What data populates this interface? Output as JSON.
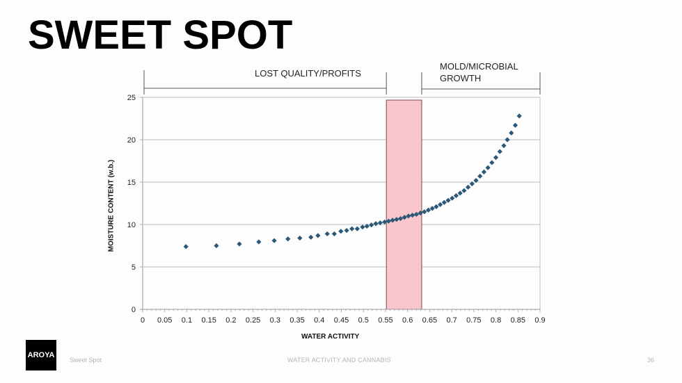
{
  "slide": {
    "title": "SWEET SPOT",
    "footer": {
      "logo": "AROYA",
      "section": "Sweet Spot",
      "deck_title": "WATER ACTIVITY AND CANNABIS",
      "page_number": "36"
    }
  },
  "annotations": {
    "left_region": "LOST QUALITY/PROFITS",
    "right_region_line1": "MOLD/MICROBIAL",
    "right_region_line2": "GROWTH"
  },
  "colors": {
    "marker": "#2c5877",
    "sweet_spot_fill": "#f8c6cc",
    "sweet_spot_border": "#7a4a4f",
    "grid": "#c8c8c8"
  },
  "chart_data": {
    "type": "scatter",
    "title": "SWEET SPOT",
    "xlabel": "WATER ACTIVITY",
    "ylabel": "MOISTURE CONTENT (w.b.)",
    "xlim": [
      0,
      0.9
    ],
    "ylim": [
      0,
      25
    ],
    "x_ticks": [
      "0",
      "0.05",
      "0.1",
      "0.15",
      "0.2",
      "0.25",
      "0.3",
      "0.35",
      "0.4",
      "0.45",
      "0.5",
      "0.55",
      "0.6",
      "0.65",
      "0.7",
      "0.75",
      "0.8",
      "0.85",
      "0.9"
    ],
    "y_ticks": [
      "0",
      "5",
      "10",
      "15",
      "20",
      "25"
    ],
    "grid": "horizontal",
    "legend": "none",
    "highlight_band": {
      "label": "sweet spot",
      "x_start": 0.552,
      "x_end": 0.632
    },
    "region_labels": [
      {
        "text": "LOST QUALITY/PROFITS",
        "x_start": 0.0,
        "x_end": 0.552
      },
      {
        "text": "MOLD/MICROBIAL GROWTH",
        "x_start": 0.632,
        "x_end": 0.9
      }
    ],
    "series": [
      {
        "name": "Moisture content",
        "x": [
          0.098,
          0.167,
          0.219,
          0.263,
          0.298,
          0.329,
          0.356,
          0.381,
          0.397,
          0.418,
          0.434,
          0.449,
          0.462,
          0.474,
          0.486,
          0.498,
          0.508,
          0.518,
          0.528,
          0.538,
          0.548,
          0.557,
          0.566,
          0.575,
          0.584,
          0.593,
          0.602,
          0.611,
          0.62,
          0.629,
          0.638,
          0.647,
          0.656,
          0.665,
          0.674,
          0.683,
          0.692,
          0.701,
          0.71,
          0.719,
          0.728,
          0.737,
          0.746,
          0.755,
          0.764,
          0.773,
          0.782,
          0.791,
          0.8,
          0.809,
          0.818,
          0.826,
          0.835,
          0.844,
          0.853
        ],
        "y": [
          7.4,
          7.5,
          7.7,
          7.95,
          8.1,
          8.3,
          8.4,
          8.5,
          8.7,
          8.9,
          8.9,
          9.2,
          9.3,
          9.5,
          9.5,
          9.7,
          9.8,
          9.95,
          10.1,
          10.2,
          10.3,
          10.4,
          10.5,
          10.6,
          10.7,
          10.85,
          11.0,
          11.1,
          11.2,
          11.35,
          11.5,
          11.7,
          11.9,
          12.1,
          12.35,
          12.6,
          12.85,
          13.1,
          13.4,
          13.7,
          14.0,
          14.4,
          14.8,
          15.2,
          15.7,
          16.2,
          16.7,
          17.3,
          17.9,
          18.6,
          19.3,
          20.0,
          20.8,
          21.7,
          22.8
        ]
      }
    ]
  }
}
